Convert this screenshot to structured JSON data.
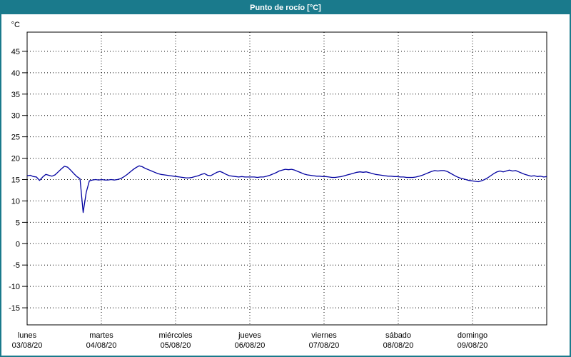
{
  "window": {
    "title": "Punto de rocío [°C]"
  },
  "chart_data": {
    "type": "line",
    "title": "Punto de rocío [°C]",
    "unit_label": "°C",
    "xlabel": "",
    "ylabel": "°C",
    "grid": "dotted",
    "legend_position": "none",
    "ylim": [
      -19,
      49.5
    ],
    "y_ticks": [
      45,
      40,
      35,
      30,
      25,
      20,
      15,
      10,
      5,
      0,
      -5,
      -10,
      -15
    ],
    "x_range_hours": [
      0,
      168
    ],
    "sample_interval_hours": 1,
    "x_ticks": [
      {
        "day": "lunes",
        "date": "03/08/20"
      },
      {
        "day": "martes",
        "date": "04/08/20"
      },
      {
        "day": "miércoles",
        "date": "05/08/20"
      },
      {
        "day": "jueves",
        "date": "06/08/20"
      },
      {
        "day": "viernes",
        "date": "07/08/20"
      },
      {
        "day": "sábado",
        "date": "08/08/20"
      },
      {
        "day": "domingo",
        "date": "09/08/20"
      }
    ],
    "series": [
      {
        "name": "dewpoint",
        "label": "Punto de rocío",
        "color": "#0000a0",
        "values": [
          15.9,
          16.0,
          15.7,
          15.6,
          14.8,
          15.6,
          16.2,
          16.0,
          15.8,
          16.1,
          16.8,
          17.5,
          18.1,
          17.9,
          17.2,
          16.4,
          15.7,
          15.2,
          7.3,
          12.0,
          14.7,
          14.9,
          15.0,
          14.9,
          15.0,
          14.9,
          14.9,
          15.0,
          14.9,
          15.0,
          15.2,
          15.6,
          16.1,
          16.7,
          17.3,
          17.8,
          18.2,
          18.0,
          17.6,
          17.3,
          17.0,
          16.7,
          16.4,
          16.2,
          16.1,
          16.0,
          15.9,
          15.8,
          15.7,
          15.6,
          15.5,
          15.4,
          15.4,
          15.5,
          15.7,
          15.9,
          16.2,
          16.4,
          16.0,
          15.9,
          16.3,
          16.7,
          16.9,
          16.6,
          16.2,
          15.9,
          15.8,
          15.7,
          15.6,
          15.7,
          15.6,
          15.6,
          15.6,
          15.6,
          15.5,
          15.6,
          15.6,
          15.8,
          16.0,
          16.3,
          16.6,
          17.0,
          17.2,
          17.4,
          17.3,
          17.4,
          17.2,
          16.9,
          16.6,
          16.3,
          16.1,
          16.0,
          15.9,
          15.8,
          15.8,
          15.7,
          15.7,
          15.6,
          15.5,
          15.5,
          15.6,
          15.7,
          15.9,
          16.1,
          16.3,
          16.5,
          16.7,
          16.8,
          16.7,
          16.8,
          16.6,
          16.4,
          16.2,
          16.1,
          16.0,
          15.9,
          15.8,
          15.8,
          15.7,
          15.7,
          15.6,
          15.6,
          15.5,
          15.5,
          15.5,
          15.6,
          15.8,
          16.0,
          16.3,
          16.6,
          16.9,
          17.1,
          17.0,
          17.1,
          17.1,
          16.9,
          16.5,
          16.1,
          15.7,
          15.4,
          15.2,
          15.0,
          14.8,
          14.7,
          14.6,
          14.5,
          14.7,
          15.0,
          15.4,
          15.9,
          16.4,
          16.8,
          17.0,
          16.8,
          17.0,
          17.2,
          17.0,
          17.1,
          16.8,
          16.5,
          16.2,
          16.0,
          15.8,
          15.9,
          15.7,
          15.8,
          15.6,
          15.7
        ]
      }
    ]
  }
}
